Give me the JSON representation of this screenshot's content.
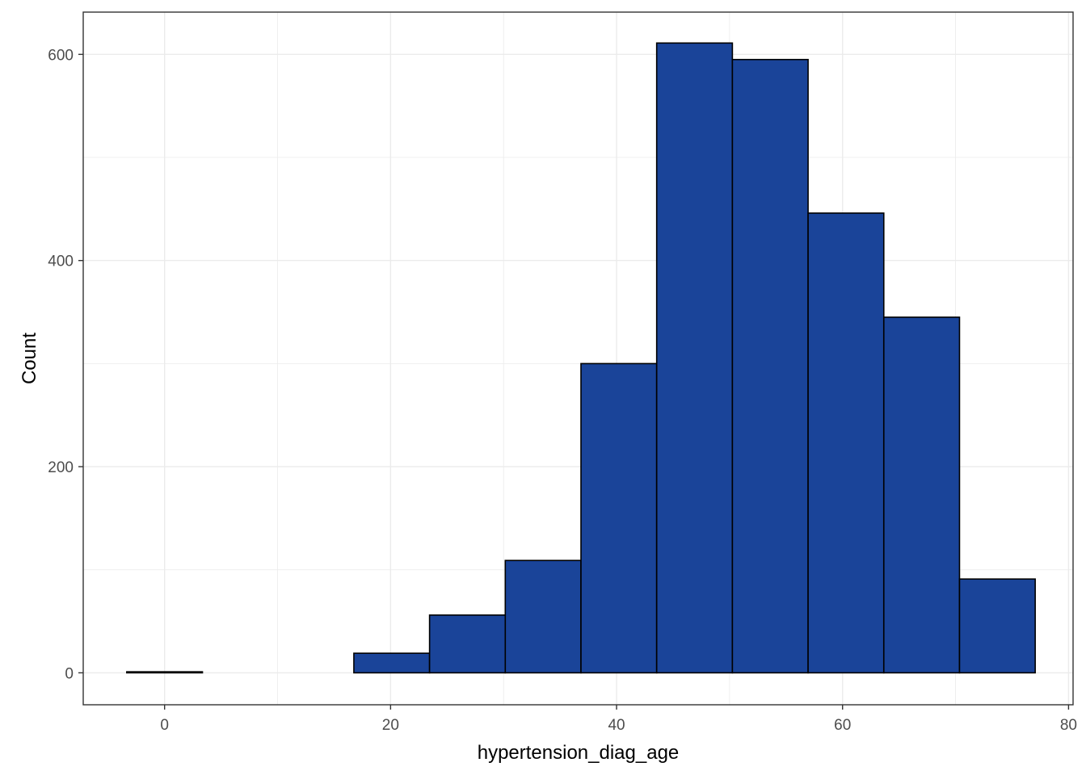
{
  "chart_data": {
    "type": "bar",
    "subtype": "histogram",
    "xlabel": "hypertension_diag_age",
    "ylabel": "Count",
    "xlim": [
      -7.2,
      80.4
    ],
    "ylim": [
      -31,
      641
    ],
    "x_ticks": [
      0,
      20,
      40,
      60,
      80
    ],
    "y_ticks": [
      0,
      200,
      400,
      600
    ],
    "x_tick_labels": [
      "0",
      "20",
      "40",
      "60",
      "80"
    ],
    "y_tick_labels": [
      "0",
      "200",
      "400",
      "600"
    ],
    "bin_width": 6.7,
    "bins": [
      {
        "x0": -3.35,
        "x1": 3.35,
        "count": 1
      },
      {
        "x0": 3.35,
        "x1": 10.05,
        "count": 0
      },
      {
        "x0": 10.05,
        "x1": 16.75,
        "count": 0
      },
      {
        "x0": 16.75,
        "x1": 23.45,
        "count": 19
      },
      {
        "x0": 23.45,
        "x1": 30.15,
        "count": 56
      },
      {
        "x0": 30.15,
        "x1": 36.85,
        "count": 109
      },
      {
        "x0": 36.85,
        "x1": 43.55,
        "count": 300
      },
      {
        "x0": 43.55,
        "x1": 50.25,
        "count": 611
      },
      {
        "x0": 50.25,
        "x1": 56.95,
        "count": 595
      },
      {
        "x0": 56.95,
        "x1": 63.65,
        "count": 446
      },
      {
        "x0": 63.65,
        "x1": 70.35,
        "count": 345
      },
      {
        "x0": 70.35,
        "x1": 77.05,
        "count": 91
      }
    ],
    "fill_color": "#1a4499",
    "border_color": "#000000",
    "grid": true,
    "legend": "none"
  }
}
